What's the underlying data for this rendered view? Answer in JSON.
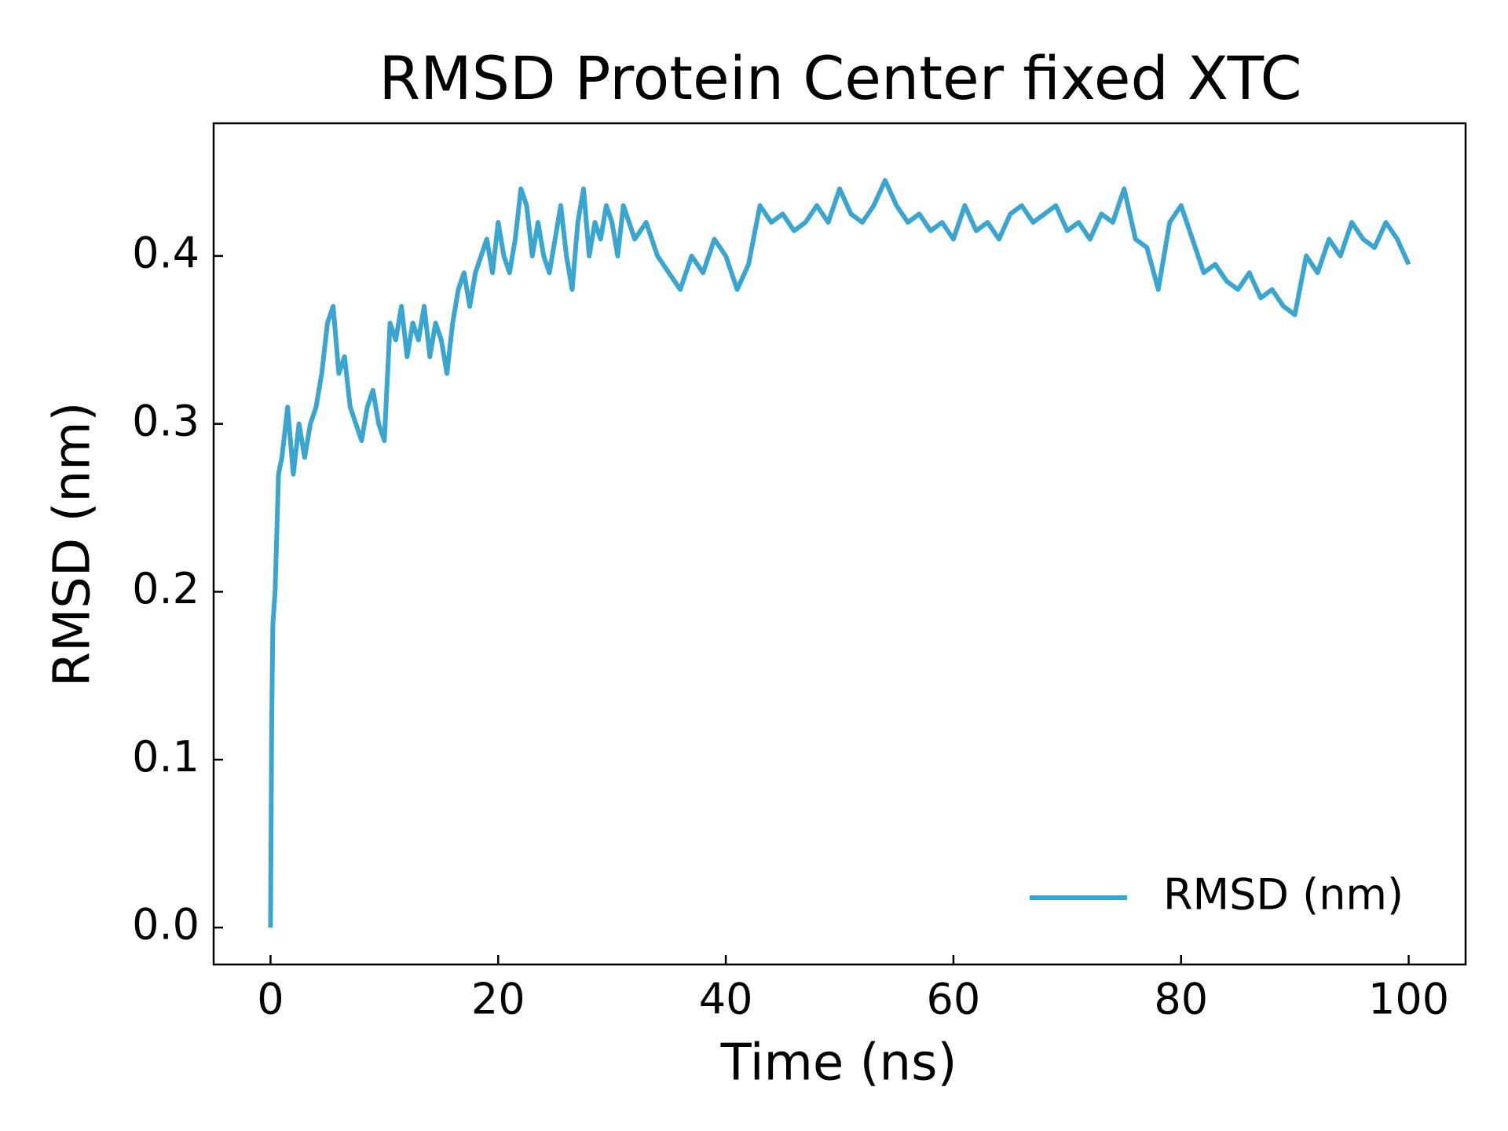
{
  "chart_data": {
    "type": "line",
    "title": "RMSD Protein Center fixed XTC",
    "xlabel": "Time (ns)",
    "ylabel": "RMSD (nm)",
    "x": [
      0,
      0.1,
      0.2,
      0.4,
      0.7,
      1,
      1.5,
      2,
      2.5,
      3,
      3.5,
      4,
      4.5,
      5,
      5.5,
      6,
      6.5,
      7,
      7.5,
      8,
      8.5,
      9,
      9.5,
      10,
      10.5,
      11,
      11.5,
      12,
      12.5,
      13,
      13.5,
      14,
      14.5,
      15,
      15.5,
      16,
      16.5,
      17,
      17.5,
      18,
      18.5,
      19,
      19.5,
      20,
      20.5,
      21,
      21.5,
      22,
      22.5,
      23,
      23.5,
      24,
      24.5,
      25,
      25.5,
      26,
      26.5,
      27,
      27.5,
      28,
      28.5,
      29,
      29.5,
      30,
      30.5,
      31,
      32,
      33,
      34,
      35,
      36,
      37,
      38,
      39,
      40,
      41,
      42,
      43,
      44,
      45,
      46,
      47,
      48,
      49,
      50,
      51,
      52,
      53,
      54,
      55,
      56,
      57,
      58,
      59,
      60,
      61,
      62,
      63,
      64,
      65,
      66,
      67,
      68,
      69,
      70,
      71,
      72,
      73,
      74,
      75,
      76,
      77,
      78,
      79,
      80,
      81,
      82,
      83,
      84,
      85,
      86,
      87,
      88,
      89,
      90,
      91,
      92,
      93,
      94,
      95,
      96,
      97,
      98,
      99,
      100
    ],
    "series": [
      {
        "name": "RMSD (nm)",
        "color": "#3aa6cf",
        "values": [
          0.0,
          0.12,
          0.18,
          0.2,
          0.27,
          0.28,
          0.31,
          0.27,
          0.3,
          0.28,
          0.3,
          0.31,
          0.33,
          0.36,
          0.37,
          0.33,
          0.34,
          0.31,
          0.3,
          0.29,
          0.31,
          0.32,
          0.3,
          0.29,
          0.36,
          0.35,
          0.37,
          0.34,
          0.36,
          0.35,
          0.37,
          0.34,
          0.36,
          0.35,
          0.33,
          0.36,
          0.38,
          0.39,
          0.37,
          0.39,
          0.4,
          0.41,
          0.39,
          0.42,
          0.4,
          0.39,
          0.41,
          0.44,
          0.43,
          0.4,
          0.42,
          0.4,
          0.39,
          0.41,
          0.43,
          0.4,
          0.38,
          0.42,
          0.44,
          0.4,
          0.42,
          0.41,
          0.43,
          0.42,
          0.4,
          0.43,
          0.41,
          0.42,
          0.4,
          0.39,
          0.38,
          0.4,
          0.39,
          0.41,
          0.4,
          0.38,
          0.395,
          0.43,
          0.42,
          0.425,
          0.415,
          0.42,
          0.43,
          0.42,
          0.44,
          0.425,
          0.42,
          0.43,
          0.445,
          0.43,
          0.42,
          0.425,
          0.415,
          0.42,
          0.41,
          0.43,
          0.415,
          0.42,
          0.41,
          0.425,
          0.43,
          0.42,
          0.425,
          0.43,
          0.415,
          0.42,
          0.41,
          0.425,
          0.42,
          0.44,
          0.41,
          0.405,
          0.38,
          0.42,
          0.43,
          0.41,
          0.39,
          0.395,
          0.385,
          0.38,
          0.39,
          0.375,
          0.38,
          0.37,
          0.365,
          0.4,
          0.39,
          0.41,
          0.4,
          0.42,
          0.41,
          0.405,
          0.42,
          0.41,
          0.395
        ]
      }
    ],
    "xlim": [
      -5,
      105
    ],
    "xticks": [
      0,
      20,
      40,
      60,
      80,
      100
    ],
    "ylim": [
      -0.022,
      0.479
    ],
    "yticks": [
      {
        "value": 0,
        "label": "0.0"
      },
      0.1,
      0.2,
      0.3,
      0.4
    ],
    "legend": "lower right"
  }
}
